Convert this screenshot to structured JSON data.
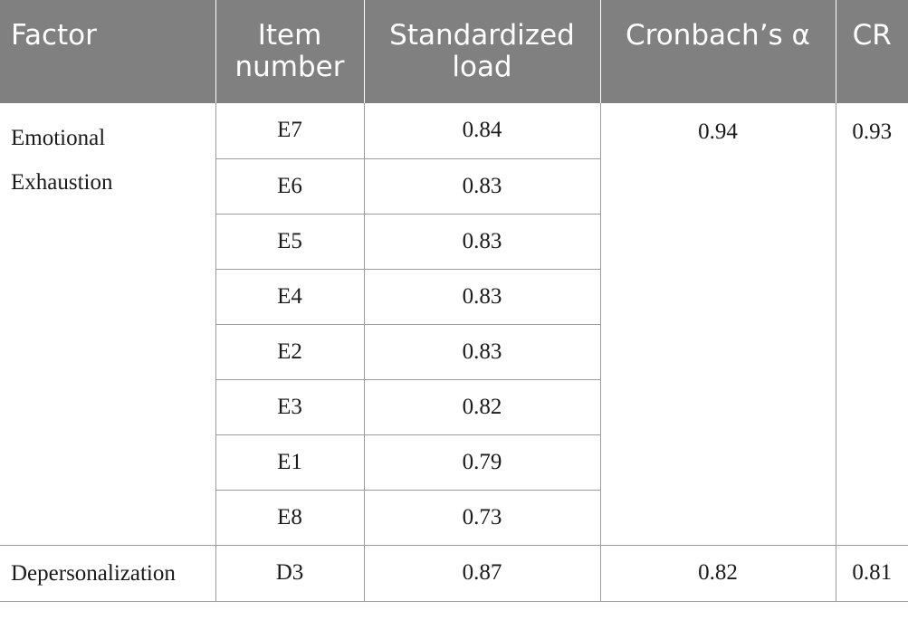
{
  "table": {
    "headers": {
      "factor": "Factor",
      "item_number_line1": "Item",
      "item_number_line2": "number",
      "standardized_load_line1": "Standardized",
      "standardized_load_line2": "load",
      "cronbach": "Cronbach’s α",
      "cr": "CR"
    },
    "groups": [
      {
        "factor_line1": "Emotional",
        "factor_line2": "Exhaustion",
        "alpha": "0.94",
        "cr": "0.93",
        "rows": [
          {
            "item": "E7",
            "load": "0.84"
          },
          {
            "item": "E6",
            "load": "0.83"
          },
          {
            "item": "E5",
            "load": "0.83"
          },
          {
            "item": "E4",
            "load": "0.83"
          },
          {
            "item": "E2",
            "load": "0.83"
          },
          {
            "item": "E3",
            "load": "0.82"
          },
          {
            "item": "E1",
            "load": "0.79"
          },
          {
            "item": "E8",
            "load": "0.73"
          }
        ]
      },
      {
        "factor_line1": "Depersonalization",
        "alpha": "0.82",
        "cr": "0.81",
        "rows": [
          {
            "item": "D3",
            "load": "0.87"
          }
        ]
      }
    ]
  }
}
